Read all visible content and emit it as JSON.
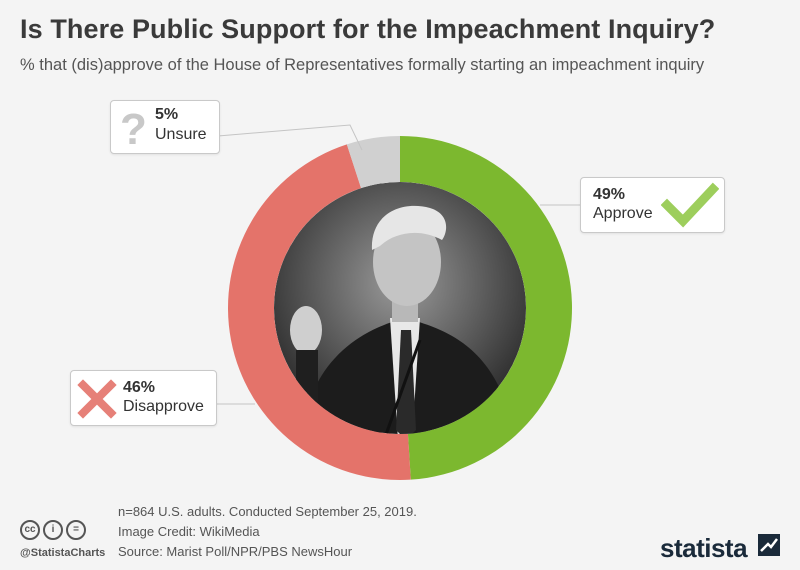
{
  "title": "Is There Public Support for the Impeachment Inquiry?",
  "subtitle": "% that (dis)approve of the House of Representatives formally starting an impeachment inquiry",
  "chart_data": {
    "type": "pie",
    "style": "donut",
    "slices": [
      {
        "label": "Approve",
        "value": 49,
        "value_label": "49%",
        "color": "#7cb82f",
        "icon": "checkmark-icon"
      },
      {
        "label": "Disapprove",
        "value": 46,
        "value_label": "46%",
        "color": "#e4736a",
        "icon": "x-mark-icon"
      },
      {
        "label": "Unsure",
        "value": 5,
        "value_label": "5%",
        "color": "#d0d0d0",
        "icon": "question-mark-icon"
      }
    ],
    "center_image": "politician-photo"
  },
  "footer": {
    "note": "n=864 U.S. adults. Conducted September 25, 2019.",
    "credit": "Image Credit: WikiMedia",
    "source": "Source: Marist Poll/NPR/PBS NewsHour"
  },
  "license_icons": [
    "cc-icon",
    "attribution-icon",
    "no-derivatives-icon"
  ],
  "license_marks": [
    "cc",
    "i",
    "="
  ],
  "handle": "@StatistaCharts",
  "brand": "statista"
}
